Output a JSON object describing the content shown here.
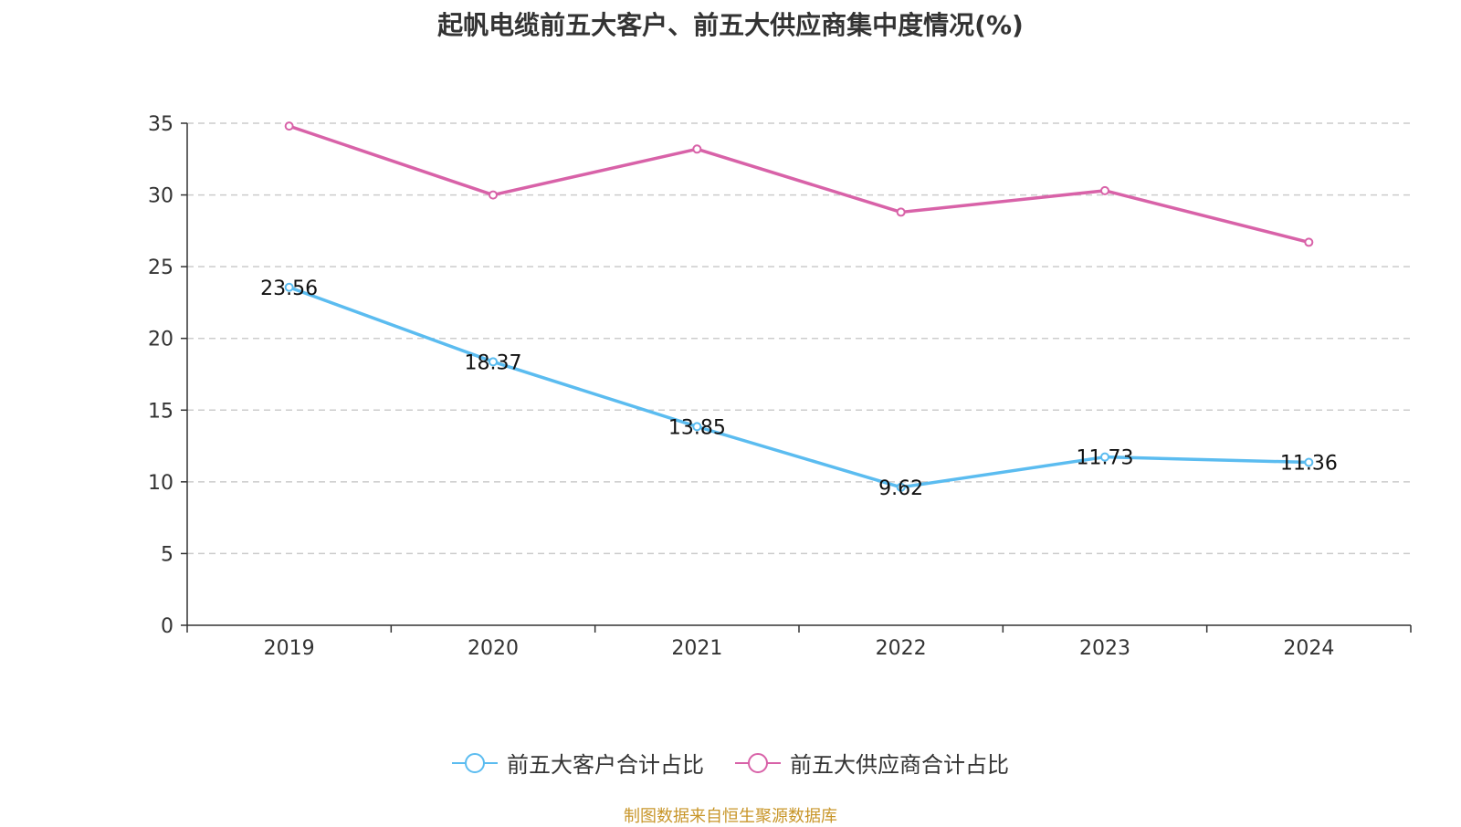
{
  "page_title": "起帆电缆前五大客户、前五大供应商集中度情况(%)",
  "source_note": "制图数据来自恒生聚源数据库",
  "colors": {
    "customers": "#5bbcf0",
    "suppliers": "#d862a8",
    "grid": "#cccccc",
    "axis": "#333333",
    "source": "#c8962a"
  },
  "chart_data": {
    "type": "line",
    "title": "起帆电缆前五大客户、前五大供应商集中度情况(%)",
    "categories": [
      "2019",
      "2020",
      "2021",
      "2022",
      "2023",
      "2024"
    ],
    "series": [
      {
        "name": "前五大客户合计占比",
        "values": [
          23.56,
          18.37,
          13.85,
          9.62,
          11.73,
          11.36
        ],
        "data_labels": [
          "23.56",
          "18.37",
          "13.85",
          "9.62",
          "11.73",
          "11.36"
        ],
        "color": "#5bbcf0"
      },
      {
        "name": "前五大供应商合计占比",
        "values": [
          34.8,
          30.0,
          33.2,
          28.8,
          30.3,
          26.7
        ],
        "color": "#d862a8"
      }
    ],
    "ylim": [
      0,
      35
    ],
    "yticks": [
      "0",
      "5",
      "10",
      "15",
      "20",
      "25",
      "30",
      "35"
    ],
    "grid": true,
    "legend_position": "bottom"
  }
}
